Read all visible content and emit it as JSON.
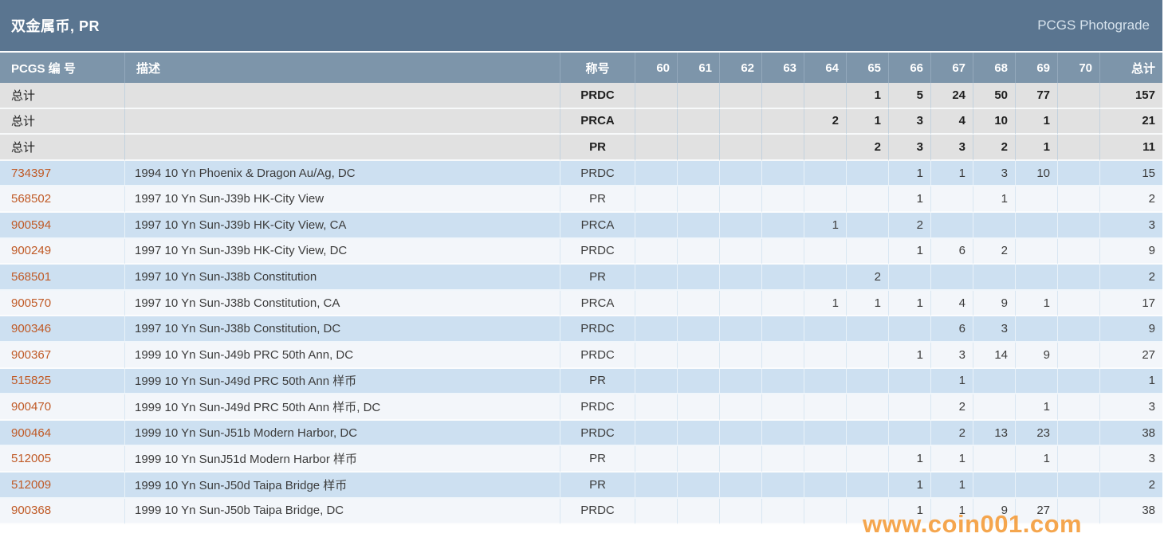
{
  "page": {
    "title": "双金属币, PR",
    "photograde_label": "PCGS Photograde"
  },
  "colors": {
    "titlebar_bg": "#5a7590",
    "header_bg": "#7d95aa",
    "totals_row_bg": "#e1e1e1",
    "row_blue_bg": "#cde0f1",
    "row_white_bg": "#f3f6fa",
    "pcgs_number_link": "#c05a26",
    "watermark_orange": "#f3972f"
  },
  "watermark": "www.coin001.com",
  "table": {
    "header": {
      "pcgs": "PCGS 编 号",
      "desc": "描述",
      "designation": "称号",
      "grades": [
        "60",
        "61",
        "62",
        "63",
        "64",
        "65",
        "66",
        "67",
        "68",
        "69",
        "70"
      ],
      "total": "总计"
    },
    "totals_rows": [
      {
        "label": "总计",
        "designation": "PRDC",
        "values": [
          "",
          "",
          "",
          "",
          "",
          "1",
          "5",
          "24",
          "50",
          "77",
          ""
        ],
        "total": "157"
      },
      {
        "label": "总计",
        "designation": "PRCA",
        "values": [
          "",
          "",
          "",
          "",
          "2",
          "1",
          "3",
          "4",
          "10",
          "1",
          ""
        ],
        "total": "21"
      },
      {
        "label": "总计",
        "designation": "PR",
        "values": [
          "",
          "",
          "",
          "",
          "",
          "2",
          "3",
          "3",
          "2",
          "1",
          ""
        ],
        "total": "11"
      }
    ],
    "rows": [
      {
        "pcgs_number": "734397",
        "description": "1994 10 Yn Phoenix & Dragon Au/Ag, DC",
        "designation": "PRDC",
        "values": [
          "",
          "",
          "",
          "",
          "",
          "",
          "1",
          "1",
          "3",
          "10",
          ""
        ],
        "total": "15"
      },
      {
        "pcgs_number": "568502",
        "description": "1997 10 Yn Sun-J39b HK-City View",
        "designation": "PR",
        "values": [
          "",
          "",
          "",
          "",
          "",
          "",
          "1",
          "",
          "1",
          "",
          ""
        ],
        "total": "2"
      },
      {
        "pcgs_number": "900594",
        "description": "1997 10 Yn Sun-J39b HK-City View, CA",
        "designation": "PRCA",
        "values": [
          "",
          "",
          "",
          "",
          "1",
          "",
          "2",
          "",
          "",
          "",
          ""
        ],
        "total": "3"
      },
      {
        "pcgs_number": "900249",
        "description": "1997 10 Yn Sun-J39b HK-City View, DC",
        "designation": "PRDC",
        "values": [
          "",
          "",
          "",
          "",
          "",
          "",
          "1",
          "6",
          "2",
          "",
          ""
        ],
        "total": "9"
      },
      {
        "pcgs_number": "568501",
        "description": "1997 10 Yn Sun-J38b Constitution",
        "designation": "PR",
        "values": [
          "",
          "",
          "",
          "",
          "",
          "2",
          "",
          "",
          "",
          "",
          ""
        ],
        "total": "2"
      },
      {
        "pcgs_number": "900570",
        "description": "1997 10 Yn Sun-J38b Constitution, CA",
        "designation": "PRCA",
        "values": [
          "",
          "",
          "",
          "",
          "1",
          "1",
          "1",
          "4",
          "9",
          "1",
          ""
        ],
        "total": "17"
      },
      {
        "pcgs_number": "900346",
        "description": "1997 10 Yn Sun-J38b Constitution, DC",
        "designation": "PRDC",
        "values": [
          "",
          "",
          "",
          "",
          "",
          "",
          "",
          "6",
          "3",
          "",
          ""
        ],
        "total": "9"
      },
      {
        "pcgs_number": "900367",
        "description": "1999 10 Yn Sun-J49b PRC 50th Ann, DC",
        "designation": "PRDC",
        "values": [
          "",
          "",
          "",
          "",
          "",
          "",
          "1",
          "3",
          "14",
          "9",
          ""
        ],
        "total": "27"
      },
      {
        "pcgs_number": "515825",
        "description": "1999 10 Yn Sun-J49d PRC 50th Ann 样币",
        "designation": "PR",
        "values": [
          "",
          "",
          "",
          "",
          "",
          "",
          "",
          "1",
          "",
          "",
          ""
        ],
        "total": "1"
      },
      {
        "pcgs_number": "900470",
        "description": "1999 10 Yn Sun-J49d PRC 50th Ann 样币, DC",
        "designation": "PRDC",
        "values": [
          "",
          "",
          "",
          "",
          "",
          "",
          "",
          "2",
          "",
          "1",
          ""
        ],
        "total": "3"
      },
      {
        "pcgs_number": "900464",
        "description": "1999 10 Yn Sun-J51b Modern Harbor, DC",
        "designation": "PRDC",
        "values": [
          "",
          "",
          "",
          "",
          "",
          "",
          "",
          "2",
          "13",
          "23",
          ""
        ],
        "total": "38"
      },
      {
        "pcgs_number": "512005",
        "description": "1999 10 Yn SunJ51d Modern Harbor 样币",
        "designation": "PR",
        "values": [
          "",
          "",
          "",
          "",
          "",
          "",
          "1",
          "1",
          "",
          "1",
          ""
        ],
        "total": "3"
      },
      {
        "pcgs_number": "512009",
        "description": "1999 10 Yn Sun-J50d Taipa Bridge 样币",
        "designation": "PR",
        "values": [
          "",
          "",
          "",
          "",
          "",
          "",
          "1",
          "1",
          "",
          "",
          ""
        ],
        "total": "2"
      },
      {
        "pcgs_number": "900368",
        "description": "1999 10 Yn Sun-J50b Taipa Bridge, DC",
        "designation": "PRDC",
        "values": [
          "",
          "",
          "",
          "",
          "",
          "",
          "1",
          "1",
          "9",
          "27",
          ""
        ],
        "total": "38"
      }
    ]
  }
}
